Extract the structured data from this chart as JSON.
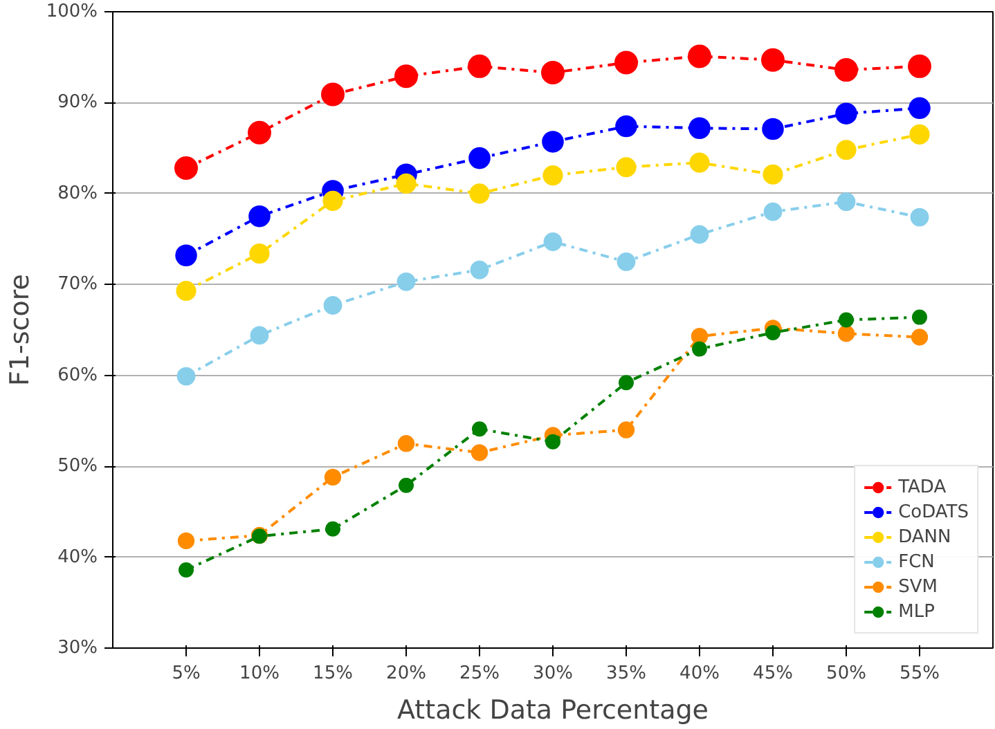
{
  "chart_data": {
    "type": "line",
    "xlabel": "Attack Data Percentage",
    "ylabel": "F1-score",
    "x": [
      5,
      10,
      15,
      20,
      25,
      30,
      35,
      40,
      45,
      50,
      55
    ],
    "xlim": [
      0,
      60
    ],
    "xticks": [
      {
        "value": 5,
        "label": "5%"
      },
      {
        "value": 10,
        "label": "10%"
      },
      {
        "value": 15,
        "label": "15%"
      },
      {
        "value": 20,
        "label": "20%"
      },
      {
        "value": 25,
        "label": "25%"
      },
      {
        "value": 30,
        "label": "30%"
      },
      {
        "value": 35,
        "label": "35%"
      },
      {
        "value": 40,
        "label": "40%"
      },
      {
        "value": 45,
        "label": "45%"
      },
      {
        "value": 50,
        "label": "50%"
      },
      {
        "value": 55,
        "label": "55%"
      }
    ],
    "ylim": [
      30,
      100
    ],
    "yticks": [
      {
        "value": 30,
        "label": "30%"
      },
      {
        "value": 40,
        "label": "40%"
      },
      {
        "value": 50,
        "label": "50%"
      },
      {
        "value": 60,
        "label": "60%"
      },
      {
        "value": 70,
        "label": "70%"
      },
      {
        "value": 80,
        "label": "80%"
      },
      {
        "value": 90,
        "label": "90%"
      },
      {
        "value": 100,
        "label": "100%"
      }
    ],
    "grid": "y",
    "legend": "bottom right",
    "marker": "circle",
    "line_style": "dashdot",
    "series": [
      {
        "name": "TADA",
        "color": "#ff0000",
        "values": [
          82.8,
          86.7,
          90.9,
          92.9,
          94.0,
          93.3,
          94.4,
          95.1,
          94.7,
          93.6,
          94.0
        ]
      },
      {
        "name": "CoDATS",
        "color": "#0000ff",
        "values": [
          73.2,
          77.5,
          80.3,
          82.1,
          83.9,
          85.7,
          87.4,
          87.2,
          87.1,
          88.8,
          89.4
        ]
      },
      {
        "name": "DANN",
        "color": "#ffd700",
        "values": [
          69.3,
          73.4,
          79.2,
          81.1,
          80.0,
          82.0,
          82.9,
          83.4,
          82.1,
          84.8,
          86.5
        ]
      },
      {
        "name": "FCN",
        "color": "#87ceeb",
        "values": [
          59.9,
          64.4,
          67.7,
          70.3,
          71.6,
          74.7,
          72.5,
          75.5,
          78.0,
          79.1,
          77.4
        ]
      },
      {
        "name": "SVM",
        "color": "#ff8c00",
        "values": [
          41.8,
          42.4,
          48.8,
          52.5,
          51.5,
          53.4,
          54.0,
          64.3,
          65.2,
          64.6,
          64.2
        ]
      },
      {
        "name": "MLP",
        "color": "#008000",
        "values": [
          38.6,
          42.3,
          43.1,
          47.9,
          54.1,
          52.7,
          59.2,
          62.9,
          64.7,
          66.1,
          66.4
        ]
      }
    ]
  }
}
